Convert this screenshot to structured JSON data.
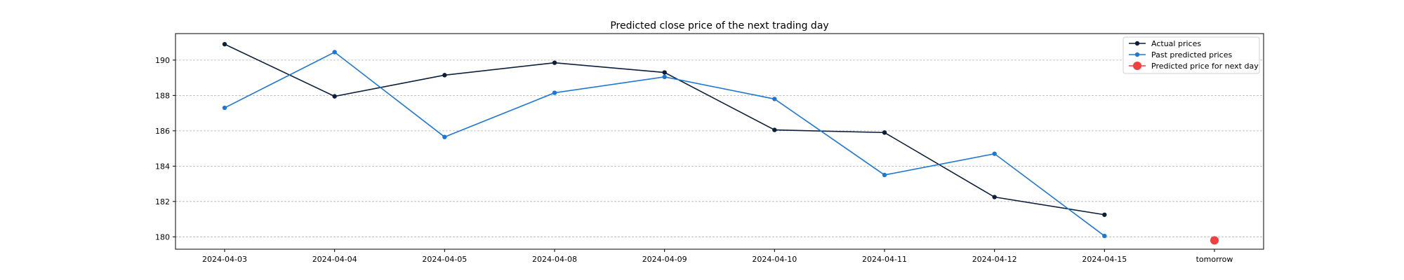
{
  "chart_data": {
    "type": "line",
    "title": "Predicted close price of the next trading day",
    "xlabel": "",
    "ylabel": "",
    "categories": [
      "2024-04-03",
      "2024-04-04",
      "2024-04-05",
      "2024-04-08",
      "2024-04-09",
      "2024-04-10",
      "2024-04-11",
      "2024-04-12",
      "2024-04-15",
      "tomorrow"
    ],
    "yticks": [
      180,
      182,
      184,
      186,
      188,
      190
    ],
    "ylim": [
      179.3,
      191.5
    ],
    "grid": "y-dashed",
    "legend_position": "top-right",
    "series": [
      {
        "name": "Actual prices",
        "color": "#0b1f3a",
        "marker": "circle",
        "values": [
          190.9,
          187.95,
          189.15,
          189.85,
          189.3,
          186.05,
          185.9,
          182.25,
          181.25,
          null
        ]
      },
      {
        "name": "Past predicted prices",
        "color": "#1f77d4",
        "marker": "circle",
        "values": [
          187.3,
          190.45,
          185.65,
          188.15,
          189.05,
          187.8,
          183.5,
          184.7,
          180.05,
          null
        ]
      },
      {
        "name": "Predicted price for next day",
        "color": "#f04040",
        "marker": "large-circle",
        "values": [
          null,
          null,
          null,
          null,
          null,
          null,
          null,
          null,
          null,
          179.8
        ]
      }
    ]
  }
}
